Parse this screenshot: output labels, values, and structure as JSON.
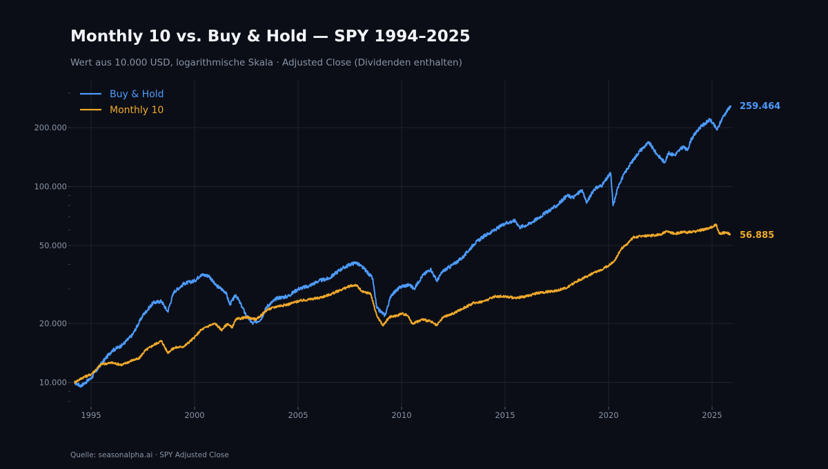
{
  "title": "Monthly 10 vs. Buy & Hold — SPY 1994–2025",
  "subtitle": "Wert aus 10.000 USD, logarithmische Skala · Adjusted Close (Dividenden enthalten)",
  "source": "Quelle: seasonalpha.ai · SPY Adjusted Close",
  "colors": {
    "background": "#0b0e16",
    "grid": "#1e2330",
    "buy_hold": "#4d9bff",
    "monthly10": "#f0a92c",
    "muted_text": "#8a93a6"
  },
  "chart_data": {
    "type": "line",
    "title": "Monthly 10 vs. Buy & Hold — SPY 1994–2025",
    "xlabel": "",
    "ylabel": "",
    "y_scale": "log",
    "xlim": [
      1994.0,
      2026.0
    ],
    "ylim": [
      7500,
      350000
    ],
    "grid": true,
    "legend_position": "top-left",
    "x_ticks": [
      1995,
      2000,
      2005,
      2010,
      2015,
      2020,
      2025
    ],
    "x_tick_labels": [
      "1995",
      "2000",
      "2005",
      "2010",
      "2015",
      "2020",
      "2025"
    ],
    "y_ticks": [
      10000,
      20000,
      50000,
      100000,
      200000
    ],
    "y_tick_labels": [
      "10.000",
      "20.000",
      "50.000",
      "100.000",
      "200.000"
    ],
    "series": [
      {
        "name": "Buy & Hold",
        "color": "#4d9bff",
        "end_label": "259.464",
        "points": [
          [
            1994.2,
            10000
          ],
          [
            1994.5,
            9600
          ],
          [
            1995.0,
            10500
          ],
          [
            1995.5,
            12500
          ],
          [
            1996.0,
            14500
          ],
          [
            1996.5,
            15500
          ],
          [
            1997.0,
            17500
          ],
          [
            1997.5,
            22000
          ],
          [
            1998.0,
            25500
          ],
          [
            1998.4,
            26000
          ],
          [
            1998.7,
            23000
          ],
          [
            1999.0,
            29000
          ],
          [
            1999.5,
            32000
          ],
          [
            2000.0,
            33000
          ],
          [
            2000.3,
            35500
          ],
          [
            2000.7,
            35000
          ],
          [
            2001.0,
            31500
          ],
          [
            2001.5,
            29000
          ],
          [
            2001.7,
            25000
          ],
          [
            2002.0,
            28000
          ],
          [
            2002.5,
            22000
          ],
          [
            2002.8,
            20000
          ],
          [
            2003.2,
            21000
          ],
          [
            2003.5,
            24500
          ],
          [
            2004.0,
            27000
          ],
          [
            2004.5,
            27500
          ],
          [
            2005.0,
            30000
          ],
          [
            2005.5,
            31000
          ],
          [
            2006.0,
            33000
          ],
          [
            2006.5,
            34000
          ],
          [
            2007.0,
            37500
          ],
          [
            2007.5,
            40000
          ],
          [
            2007.8,
            41000
          ],
          [
            2008.2,
            38000
          ],
          [
            2008.6,
            34000
          ],
          [
            2008.8,
            24000
          ],
          [
            2009.2,
            22000
          ],
          [
            2009.5,
            28000
          ],
          [
            2010.0,
            31000
          ],
          [
            2010.4,
            31500
          ],
          [
            2010.6,
            30000
          ],
          [
            2011.0,
            35000
          ],
          [
            2011.4,
            38000
          ],
          [
            2011.7,
            33000
          ],
          [
            2012.0,
            37000
          ],
          [
            2012.5,
            40000
          ],
          [
            2013.0,
            44000
          ],
          [
            2013.5,
            51000
          ],
          [
            2014.0,
            56000
          ],
          [
            2014.5,
            60000
          ],
          [
            2015.0,
            65000
          ],
          [
            2015.5,
            67000
          ],
          [
            2015.7,
            62000
          ],
          [
            2016.1,
            64000
          ],
          [
            2016.6,
            69000
          ],
          [
            2017.0,
            74000
          ],
          [
            2017.5,
            80000
          ],
          [
            2018.0,
            90000
          ],
          [
            2018.3,
            88000
          ],
          [
            2018.7,
            96000
          ],
          [
            2018.95,
            83000
          ],
          [
            2019.3,
            97000
          ],
          [
            2019.7,
            102000
          ],
          [
            2020.1,
            117000
          ],
          [
            2020.22,
            80000
          ],
          [
            2020.5,
            103000
          ],
          [
            2020.8,
            118000
          ],
          [
            2021.0,
            128000
          ],
          [
            2021.5,
            152000
          ],
          [
            2021.95,
            168000
          ],
          [
            2022.3,
            148000
          ],
          [
            2022.7,
            133000
          ],
          [
            2022.9,
            148000
          ],
          [
            2023.2,
            145000
          ],
          [
            2023.6,
            160000
          ],
          [
            2023.8,
            153000
          ],
          [
            2024.0,
            175000
          ],
          [
            2024.4,
            200000
          ],
          [
            2024.9,
            220000
          ],
          [
            2025.25,
            195000
          ],
          [
            2025.5,
            225000
          ],
          [
            2025.9,
            259464
          ]
        ]
      },
      {
        "name": "Monthly 10",
        "color": "#f0a92c",
        "end_label": "56.885",
        "points": [
          [
            1994.2,
            10000
          ],
          [
            1994.6,
            10600
          ],
          [
            1995.0,
            11000
          ],
          [
            1995.5,
            12400
          ],
          [
            1996.0,
            12600
          ],
          [
            1996.5,
            12300
          ],
          [
            1997.0,
            13000
          ],
          [
            1997.3,
            13200
          ],
          [
            1997.6,
            14500
          ],
          [
            1998.0,
            15500
          ],
          [
            1998.4,
            16300
          ],
          [
            1998.7,
            14200
          ],
          [
            1999.0,
            15000
          ],
          [
            1999.5,
            15300
          ],
          [
            2000.0,
            17000
          ],
          [
            2000.3,
            18500
          ],
          [
            2000.7,
            19500
          ],
          [
            2001.0,
            20000
          ],
          [
            2001.3,
            18500
          ],
          [
            2001.6,
            20000
          ],
          [
            2001.8,
            19000
          ],
          [
            2002.0,
            21000
          ],
          [
            2002.5,
            21500
          ],
          [
            2003.0,
            21000
          ],
          [
            2003.5,
            23500
          ],
          [
            2004.0,
            24500
          ],
          [
            2004.5,
            25000
          ],
          [
            2005.0,
            26000
          ],
          [
            2005.5,
            26500
          ],
          [
            2006.0,
            27000
          ],
          [
            2006.5,
            28000
          ],
          [
            2007.0,
            29500
          ],
          [
            2007.5,
            31000
          ],
          [
            2007.8,
            31500
          ],
          [
            2008.1,
            29000
          ],
          [
            2008.5,
            28500
          ],
          [
            2008.8,
            22000
          ],
          [
            2009.1,
            19500
          ],
          [
            2009.4,
            21500
          ],
          [
            2009.8,
            22000
          ],
          [
            2010.0,
            22500
          ],
          [
            2010.3,
            22000
          ],
          [
            2010.5,
            20000
          ],
          [
            2010.8,
            20500
          ],
          [
            2011.0,
            21000
          ],
          [
            2011.4,
            20500
          ],
          [
            2011.7,
            19500
          ],
          [
            2012.0,
            21500
          ],
          [
            2012.5,
            22500
          ],
          [
            2013.0,
            24000
          ],
          [
            2013.5,
            25500
          ],
          [
            2014.0,
            26000
          ],
          [
            2014.5,
            27500
          ],
          [
            2015.0,
            27500
          ],
          [
            2015.5,
            27000
          ],
          [
            2016.0,
            27500
          ],
          [
            2016.5,
            28500
          ],
          [
            2017.0,
            29000
          ],
          [
            2017.5,
            29500
          ],
          [
            2018.0,
            30500
          ],
          [
            2018.5,
            33000
          ],
          [
            2019.0,
            35000
          ],
          [
            2019.5,
            37000
          ],
          [
            2020.0,
            39500
          ],
          [
            2020.3,
            42000
          ],
          [
            2020.6,
            48000
          ],
          [
            2020.9,
            51000
          ],
          [
            2021.2,
            55000
          ],
          [
            2021.6,
            56000
          ],
          [
            2022.0,
            56000
          ],
          [
            2022.5,
            57000
          ],
          [
            2022.8,
            59000
          ],
          [
            2023.2,
            57500
          ],
          [
            2023.6,
            58500
          ],
          [
            2024.0,
            58500
          ],
          [
            2024.5,
            60000
          ],
          [
            2025.0,
            62000
          ],
          [
            2025.2,
            64000
          ],
          [
            2025.35,
            57500
          ],
          [
            2025.7,
            58500
          ],
          [
            2025.9,
            56885
          ]
        ]
      }
    ]
  }
}
